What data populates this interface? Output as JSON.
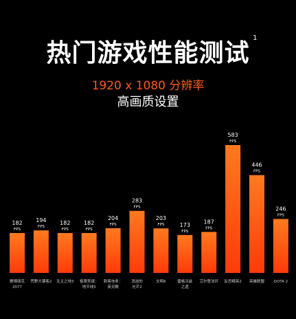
{
  "header": {
    "title": "热门游戏性能测试",
    "footnote": "1",
    "resolution": "1920 x 1080 分辨率",
    "quality": "高画质设置"
  },
  "colors": {
    "background": "#000000",
    "bar_top": "#ff7a1f",
    "bar_bottom": "#ff3a0a",
    "accent": "#ff5a1a"
  },
  "chart_data": {
    "type": "bar",
    "unit": "FPS",
    "categories": [
      [
        "赛博朋克",
        "2077"
      ],
      [
        "荒野大镖客2"
      ],
      [
        "无主之地3"
      ],
      [
        "极限竞速：",
        "地平线5"
      ],
      [
        "刺客信条：",
        "英灵殿"
      ],
      [
        "消逝的",
        "光芒2"
      ],
      [
        "文明6"
      ],
      [
        "雷格沃兹",
        "之遗"
      ],
      [
        "艾尔登法环"
      ],
      [
        "反恐精英2"
      ],
      [
        "英雄联盟"
      ],
      [
        "DOTA 2"
      ]
    ],
    "values": [
      182,
      194,
      182,
      182,
      204,
      283,
      203,
      173,
      187,
      583,
      446,
      246
    ],
    "ylim": [
      0,
      583
    ]
  }
}
